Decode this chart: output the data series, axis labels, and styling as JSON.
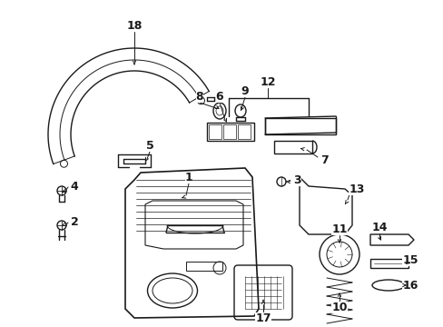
{
  "bg_color": "#ffffff",
  "fig_width": 4.89,
  "fig_height": 3.6,
  "dpi": 100,
  "line_color": "#1a1a1a",
  "line_width": 1.0,
  "label_fontsize": 9
}
